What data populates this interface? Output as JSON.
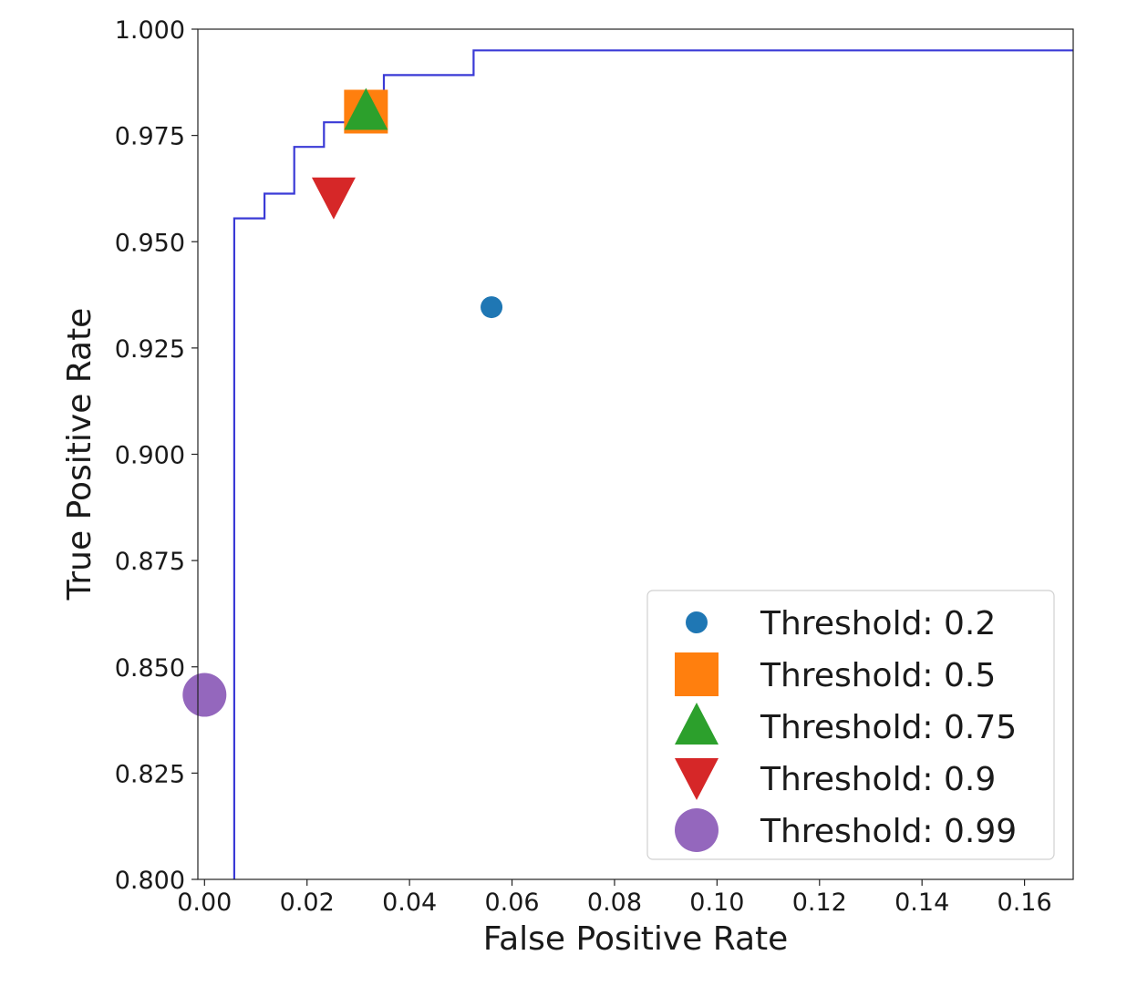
{
  "chart_data": {
    "type": "line",
    "xlabel": "False Positive Rate",
    "ylabel": "True Positive Rate",
    "xlim": [
      -0.0013,
      0.1695
    ],
    "ylim": [
      0.8,
      1.0
    ],
    "x_ticks": [
      0.0,
      0.02,
      0.04,
      0.06,
      0.08,
      0.1,
      0.12,
      0.14,
      0.16
    ],
    "x_tick_labels": [
      "0.00",
      "0.02",
      "0.04",
      "0.06",
      "0.08",
      "0.10",
      "0.12",
      "0.14",
      "0.16"
    ],
    "y_ticks": [
      0.8,
      0.825,
      0.85,
      0.875,
      0.9,
      0.925,
      0.95,
      0.975,
      1.0
    ],
    "y_tick_labels": [
      "0.800",
      "0.825",
      "0.850",
      "0.875",
      "0.900",
      "0.925",
      "0.950",
      "0.975",
      "1.000"
    ],
    "grid": false,
    "legend_position": "lower-right",
    "roc_curve": {
      "color": "#3a3ad6",
      "points": [
        [
          0.0058,
          0.8
        ],
        [
          0.0058,
          0.9555
        ],
        [
          0.0117,
          0.9555
        ],
        [
          0.0117,
          0.9613
        ],
        [
          0.0175,
          0.9613
        ],
        [
          0.0175,
          0.9723
        ],
        [
          0.0233,
          0.9723
        ],
        [
          0.0233,
          0.9781
        ],
        [
          0.0292,
          0.9781
        ],
        [
          0.0292,
          0.9839
        ],
        [
          0.035,
          0.9839
        ],
        [
          0.035,
          0.9892
        ],
        [
          0.0525,
          0.9892
        ],
        [
          0.0525,
          0.995
        ],
        [
          0.1695,
          0.995
        ]
      ]
    },
    "series": [
      {
        "name": "Threshold: 0.2",
        "marker": "circle",
        "color": "#1f77b4",
        "size": "small",
        "x": 0.056,
        "y": 0.9346
      },
      {
        "name": "Threshold: 0.5",
        "marker": "square",
        "color": "#ff7f0e",
        "size": "large",
        "x": 0.0315,
        "y": 0.9806
      },
      {
        "name": "Threshold: 0.75",
        "marker": "triangle-up",
        "color": "#2ca02c",
        "size": "large",
        "x": 0.0315,
        "y": 0.9806
      },
      {
        "name": "Threshold: 0.9",
        "marker": "triangle-down",
        "color": "#d62728",
        "size": "large",
        "x": 0.0252,
        "y": 0.9604
      },
      {
        "name": "Threshold: 0.99",
        "marker": "circle",
        "color": "#9467bd",
        "size": "large",
        "x": 0.0,
        "y": 0.8434
      }
    ]
  }
}
